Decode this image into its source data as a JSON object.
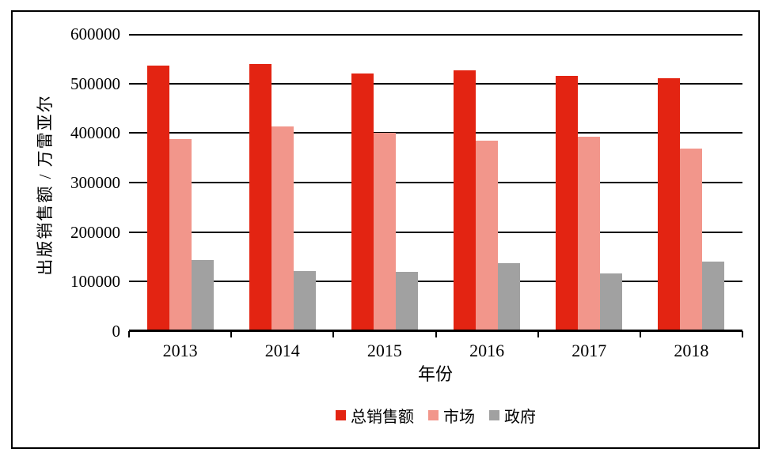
{
  "chart_data": {
    "type": "bar",
    "title": "",
    "categories": [
      "2013",
      "2014",
      "2015",
      "2016",
      "2017",
      "2018"
    ],
    "series": [
      {
        "name": "总销售额",
        "color": "#e32412",
        "values": [
          536000,
          540000,
          521000,
          526000,
          515000,
          511000
        ]
      },
      {
        "name": "市场",
        "color": "#f2968b",
        "values": [
          388000,
          414000,
          400000,
          385000,
          392000,
          368000
        ]
      },
      {
        "name": "政府",
        "color": "#a1a1a1",
        "values": [
          143000,
          122000,
          119000,
          137000,
          117000,
          140000
        ]
      }
    ],
    "xlabel": "年份",
    "ylabel": "出版销售额 / 万雷亚尔",
    "ylim": [
      0,
      600000
    ],
    "ytick_step": 100000,
    "yticks": [
      "0",
      "100000",
      "200000",
      "300000",
      "400000",
      "500000",
      "600000"
    ],
    "grid": true,
    "legend_position": "bottom",
    "colors": {
      "axis": "#000000",
      "gridline": "#000000",
      "background": "#ffffff",
      "border": "#000000"
    }
  }
}
